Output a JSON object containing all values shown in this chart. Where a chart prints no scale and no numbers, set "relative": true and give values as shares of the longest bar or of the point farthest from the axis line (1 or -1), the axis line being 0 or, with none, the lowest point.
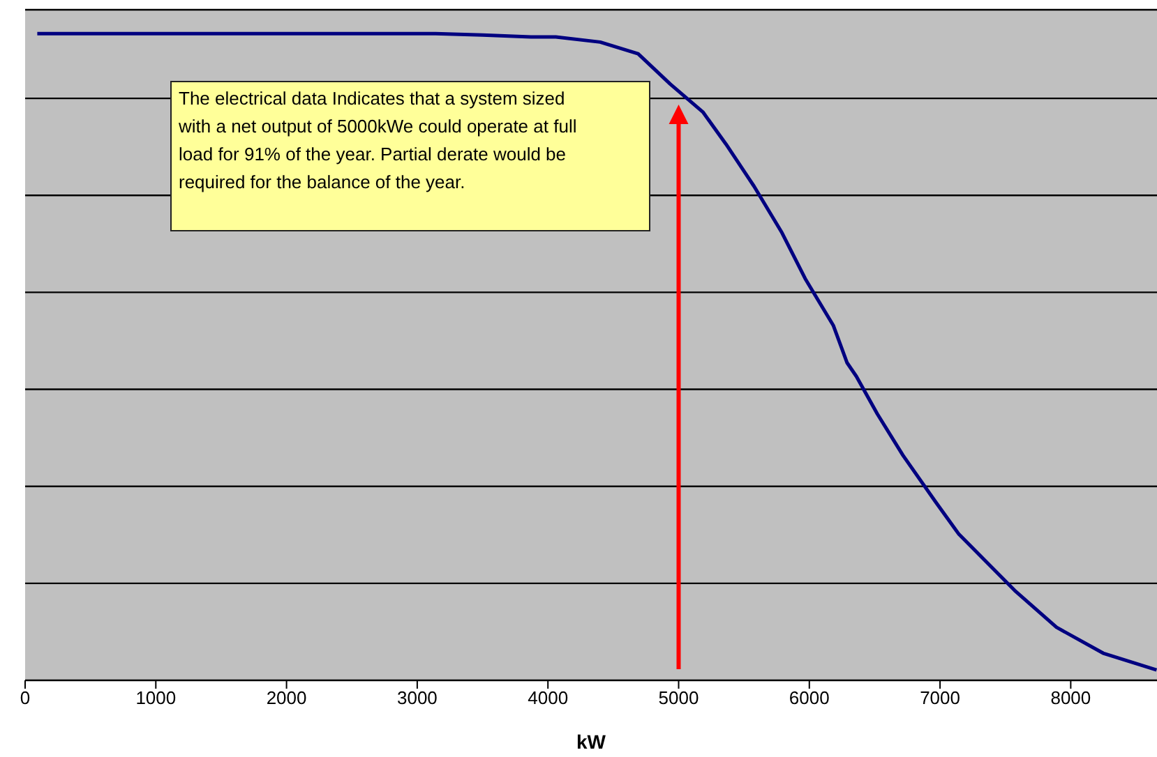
{
  "chart_data": {
    "type": "line",
    "relative": true,
    "xlabel": "kW",
    "xlim": [
      0,
      8660
    ],
    "xticks": [
      0,
      1000,
      2000,
      3000,
      4000,
      5000,
      6000,
      7000,
      8000
    ],
    "grid": "y",
    "marker": "none",
    "line_style": "solid",
    "series": [
      {
        "color": "#000080",
        "x": [
          93,
          3140,
          3500,
          3870,
          4060,
          4400,
          4690,
          4936,
          5185,
          5363,
          5577,
          5791,
          5969,
          6183,
          6289,
          6360,
          6520,
          6716,
          6966,
          7144,
          7571,
          7891,
          8248,
          8657
        ],
        "values": [
          1,
          1,
          0.998,
          0.995,
          0.995,
          0.987,
          0.969,
          0.922,
          0.879,
          0.829,
          0.764,
          0.692,
          0.621,
          0.549,
          0.491,
          0.47,
          0.412,
          0.348,
          0.276,
          0.226,
          0.139,
          0.082,
          0.042,
          0.016
        ]
      }
    ],
    "ref_lines": [
      {
        "axis": "x",
        "value": 5000,
        "color": "#ff0000"
      }
    ],
    "annotations": [
      "The electrical data Indicates that a system sized with a net output of 5000kWe could operate at full load for 91% of the year. Partial derate would be required for the balance of the year."
    ]
  }
}
